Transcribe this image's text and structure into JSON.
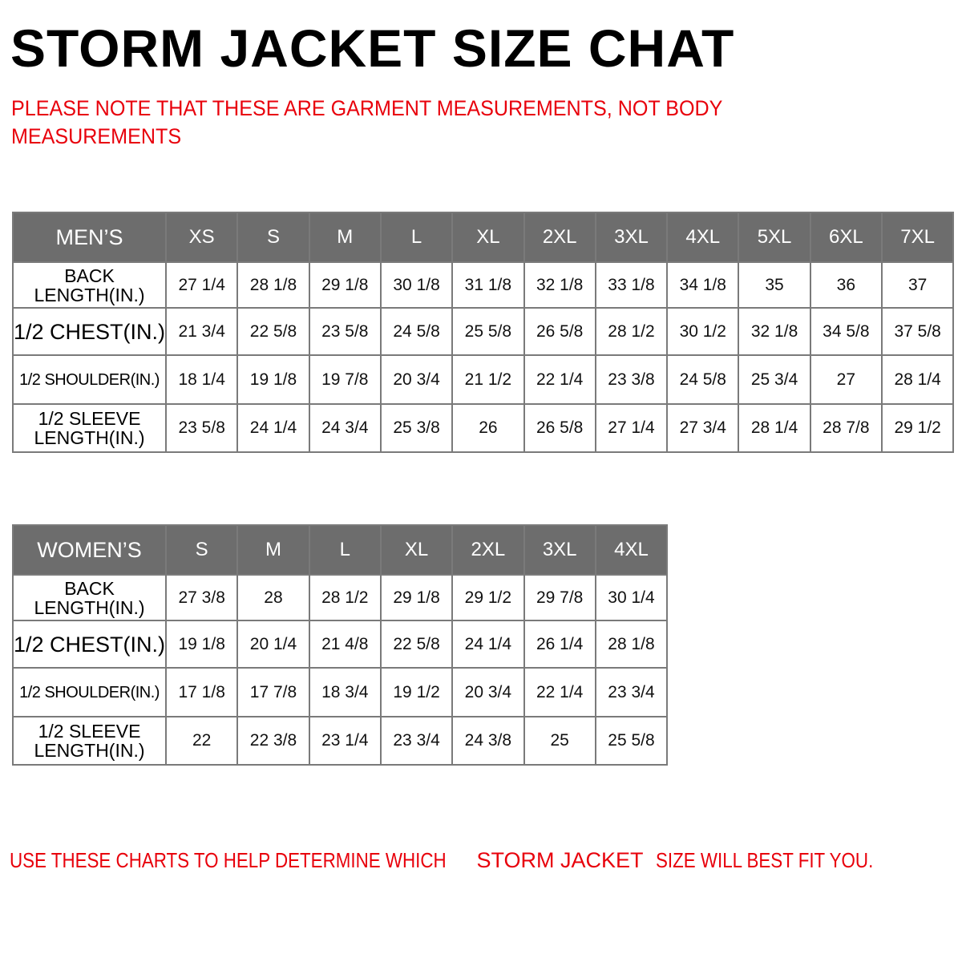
{
  "title": "STORM JACKET SIZE CHAT",
  "note": "PLEASE NOTE THAT THESE ARE GARMENT MEASUREMENTS, NOT BODY MEASUREMENTS",
  "colors": {
    "header_bg": "#6d6d6d",
    "accent_red": "#e8000b",
    "grid": "#7a7a7a"
  },
  "mens": {
    "header": "MEN’S",
    "sizes": [
      "XS",
      "S",
      "M",
      "L",
      "XL",
      "2XL",
      "3XL",
      "4XL",
      "5XL",
      "6XL",
      "7XL"
    ],
    "rows": [
      {
        "label": "BACK LENGTH(IN.)",
        "values": [
          "27 1/4",
          "28 1/8",
          "29 1/8",
          "30 1/8",
          "31 1/8",
          "32 1/8",
          "33 1/8",
          "34 1/8",
          "35",
          "36",
          "37"
        ]
      },
      {
        "label": "1/2 CHEST(IN.)",
        "values": [
          "21 3/4",
          "22 5/8",
          "23 5/8",
          "24 5/8",
          "25 5/8",
          "26 5/8",
          "28 1/2",
          "30 1/2",
          "32 1/8",
          "34 5/8",
          "37 5/8"
        ]
      },
      {
        "label": "1/2 SHOULDER(IN.)",
        "values": [
          "18 1/4",
          "19 1/8",
          "19 7/8",
          "20 3/4",
          "21 1/2",
          "22 1/4",
          "23 3/8",
          "24 5/8",
          "25 3/4",
          "27",
          "28 1/4"
        ]
      },
      {
        "label": "1/2 SLEEVE LENGTH(IN.)",
        "values": [
          "23 5/8",
          "24 1/4",
          "24 3/4",
          "25 3/8",
          "26",
          "26 5/8",
          "27 1/4",
          "27 3/4",
          "28 1/4",
          "28 7/8",
          "29 1/2"
        ]
      }
    ]
  },
  "womens": {
    "header": "WOMEN’S",
    "sizes": [
      "S",
      "M",
      "L",
      "XL",
      "2XL",
      "3XL",
      "4XL"
    ],
    "rows": [
      {
        "label": "BACK LENGTH(IN.)",
        "values": [
          "27 3/8",
          "28",
          "28 1/2",
          "29 1/8",
          "29 1/2",
          "29 7/8",
          "30 1/4"
        ]
      },
      {
        "label": "1/2 CHEST(IN.)",
        "values": [
          "19 1/8",
          "20 1/4",
          "21 4/8",
          "22 5/8",
          "24 1/4",
          "26 1/4",
          "28 1/8"
        ]
      },
      {
        "label": "1/2 SHOULDER(IN.)",
        "values": [
          "17 1/8",
          "17 7/8",
          "18 3/4",
          "19 1/2",
          "20 3/4",
          "22 1/4",
          "23 3/4"
        ]
      },
      {
        "label": "1/2 SLEEVE LENGTH(IN.)",
        "values": [
          "22",
          "22 3/8",
          "23 1/4",
          "23 3/4",
          "24 3/8",
          "25",
          "25 5/8"
        ]
      }
    ]
  },
  "footer": {
    "part1": "USE THESE CHARTS TO HELP DETERMINE WHICH",
    "brand": "STORM JACKET",
    "part2": "SIZE WILL BEST FIT YOU."
  }
}
